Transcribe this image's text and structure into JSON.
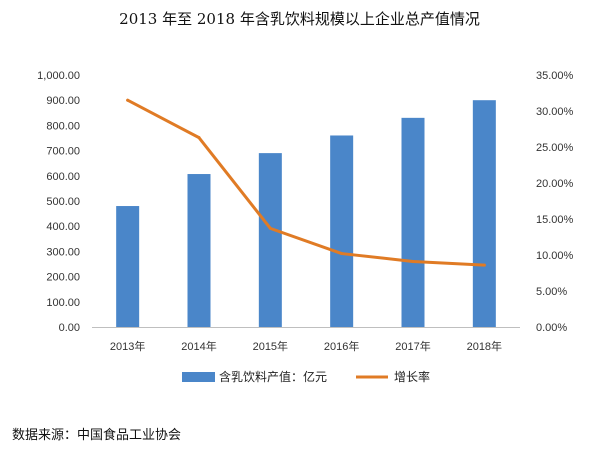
{
  "title": "2013 年至 2018 年含乳饮料规模以上企业总产值情况",
  "source": "数据来源：中国食品工业协会",
  "chart_data": {
    "type": "bar",
    "title": "2013 年至 2018 年含乳饮料规模以上企业总产值情况",
    "categories": [
      "2013年",
      "2014年",
      "2015年",
      "2016年",
      "2017年",
      "2018年"
    ],
    "series": [
      {
        "name": "含乳饮料产值：亿元",
        "type": "bar",
        "axis": "left",
        "color": "#4a86c9",
        "values": [
          480,
          607,
          690,
          760,
          830,
          900
        ]
      },
      {
        "name": "增长率",
        "type": "line",
        "axis": "right",
        "color": "#e07b25",
        "values": [
          31.5,
          26.3,
          13.7,
          10.2,
          9.1,
          8.6
        ]
      }
    ],
    "y_left": {
      "ylim": [
        0,
        1000
      ],
      "ticks": [
        "0.00",
        "100.00",
        "200.00",
        "300.00",
        "400.00",
        "500.00",
        "600.00",
        "700.00",
        "800.00",
        "900.00",
        "1,000.00"
      ]
    },
    "y_right": {
      "ylim": [
        0,
        35
      ],
      "ticks": [
        "0.00%",
        "5.00%",
        "10.00%",
        "15.00%",
        "20.00%",
        "25.00%",
        "30.00%",
        "35.00%"
      ]
    },
    "grid": false,
    "legend_position": "bottom"
  }
}
